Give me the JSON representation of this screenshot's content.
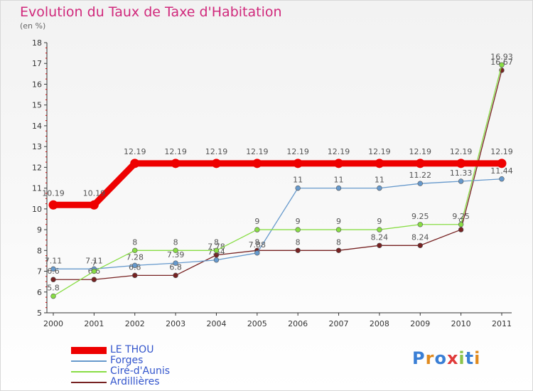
{
  "title": "Evolution du Taux de Taxe d'Habitation",
  "unit_label": "(en %)",
  "logo": {
    "text": "Proxiti",
    "colors": [
      "#3a7fd5",
      "#e08a1e",
      "#3a7fd5",
      "#e03a3a",
      "#8bc34a",
      "#3a7fd5",
      "#e08a1e"
    ]
  },
  "chart_data": {
    "type": "line",
    "x": [
      "2000",
      "2001",
      "2002",
      "2003",
      "2004",
      "2005",
      "2006",
      "2007",
      "2008",
      "2009",
      "2010",
      "2011"
    ],
    "ylim": [
      5,
      18
    ],
    "yticks": [
      5,
      6,
      7,
      8,
      9,
      10,
      11,
      12,
      13,
      14,
      15,
      16,
      17,
      18
    ],
    "grid": false,
    "legend_position": "bottom-left",
    "series": [
      {
        "name": "LE THOU",
        "color": "#ee0000",
        "values": [
          10.19,
          10.19,
          12.19,
          12.19,
          12.19,
          12.19,
          12.19,
          12.19,
          12.19,
          12.19,
          12.19,
          12.19
        ],
        "labels": [
          "10.19",
          "10.19",
          "12.19",
          "12.19",
          "12.19",
          "12.19",
          "12.19",
          "12.19",
          "12.19",
          "12.19",
          "12.19",
          "12.19"
        ]
      },
      {
        "name": "Forges",
        "color": "#6699cc",
        "values": [
          7.11,
          7.11,
          7.28,
          7.39,
          7.54,
          7.88,
          11,
          11,
          11,
          11.22,
          11.33,
          11.44
        ],
        "labels": [
          "7.11",
          "7.11",
          "7.28",
          "7.39",
          "7.54",
          "7.88",
          "11",
          "11",
          "11",
          "11.22",
          "11.33",
          "11.44"
        ]
      },
      {
        "name": "Ciré-d'Aunis",
        "color": "#88dd44",
        "values": [
          5.8,
          7,
          8,
          8,
          8,
          9,
          9,
          9,
          9,
          9.25,
          9.25,
          16.93
        ],
        "labels": [
          "5.8",
          "7",
          "8",
          "8",
          "8",
          "9",
          "9",
          "9",
          "9",
          "9.25",
          "9.25",
          "16.93"
        ]
      },
      {
        "name": "Ardillières",
        "color": "#772222",
        "values": [
          6.6,
          6.6,
          6.8,
          6.8,
          7.78,
          8,
          8,
          8,
          8.24,
          8.24,
          9,
          16.67
        ],
        "labels": [
          "6.6",
          "6.6",
          "6.8",
          "6.8",
          "7.78",
          "8",
          "8",
          "8",
          "8.24",
          "8.24",
          "9",
          "16.67"
        ]
      }
    ]
  }
}
